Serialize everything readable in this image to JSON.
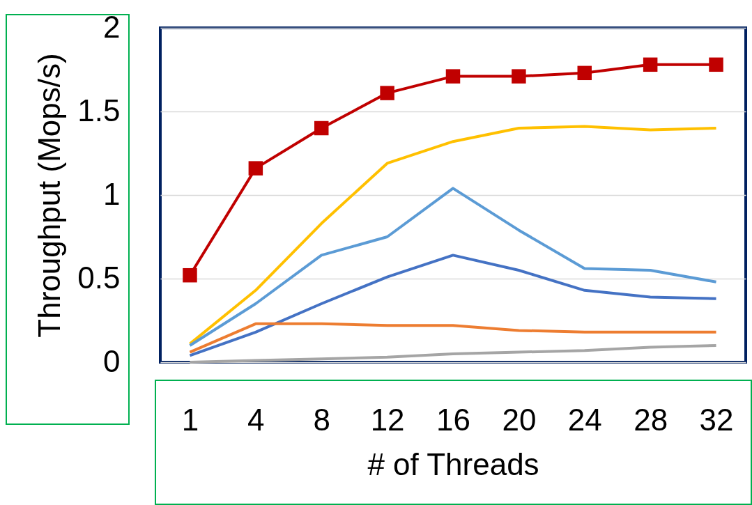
{
  "chart_data": {
    "type": "line",
    "xlabel": "# of Threads",
    "ylabel": "Throughput (Mops/s)",
    "categories": [
      "1",
      "4",
      "8",
      "12",
      "16",
      "20",
      "24",
      "28",
      "32"
    ],
    "ylim": [
      0,
      2
    ],
    "yticks": [
      0,
      0.5,
      1,
      1.5,
      2
    ],
    "grid": "y",
    "line_style": "solid",
    "series": [
      {
        "color": "#c00000",
        "marker": "square",
        "values": [
          0.52,
          1.16,
          1.4,
          1.61,
          1.71,
          1.71,
          1.73,
          1.78,
          1.78
        ]
      },
      {
        "color": "#ffc000",
        "marker": "none",
        "values": [
          0.11,
          0.43,
          0.83,
          1.19,
          1.32,
          1.4,
          1.41,
          1.39,
          1.4
        ]
      },
      {
        "color": "#5b9bd5",
        "marker": "none",
        "values": [
          0.1,
          0.35,
          0.64,
          0.75,
          1.04,
          0.79,
          0.56,
          0.55,
          0.48
        ]
      },
      {
        "color": "#4472c4",
        "marker": "none",
        "values": [
          0.04,
          0.18,
          0.35,
          0.51,
          0.64,
          0.55,
          0.43,
          0.39,
          0.38
        ]
      },
      {
        "color": "#ed7d31",
        "marker": "none",
        "values": [
          0.06,
          0.23,
          0.23,
          0.22,
          0.22,
          0.19,
          0.18,
          0.18,
          0.18
        ]
      },
      {
        "color": "#a5a5a5",
        "marker": "none",
        "values": [
          0,
          0.01,
          0.02,
          0.03,
          0.05,
          0.06,
          0.07,
          0.09,
          0.1
        ]
      }
    ]
  }
}
